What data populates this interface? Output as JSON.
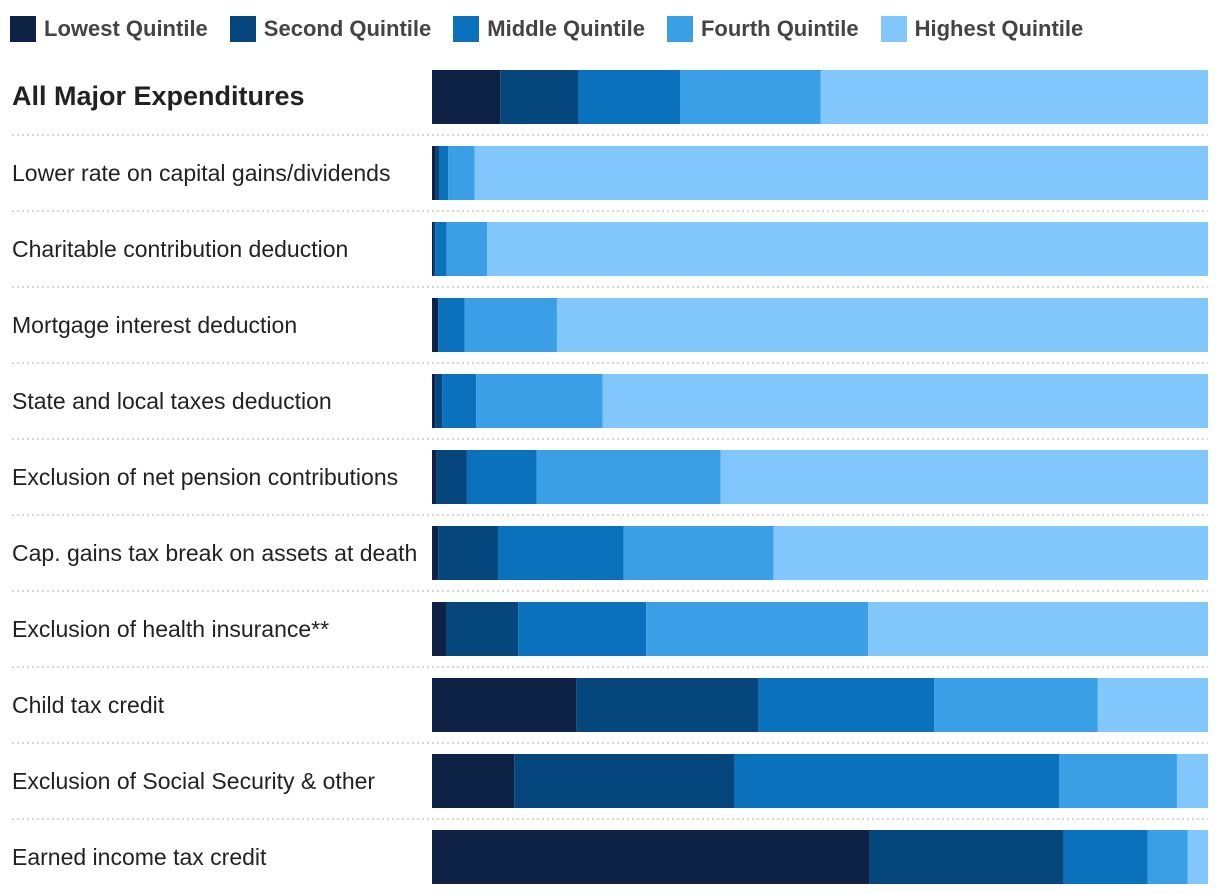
{
  "chart_data": {
    "type": "bar",
    "orientation": "horizontal",
    "stacked": true,
    "normalized_percent": true,
    "legend_position": "top",
    "categories": [
      "All Major Expenditures",
      "Lower rate on capital gains/dividends",
      "Charitable contribution deduction",
      "Mortgage interest deduction",
      "State and local taxes deduction",
      "Exclusion of net pension contributions",
      "Cap. gains tax break on assets at death",
      "Exclusion of health insurance**",
      "Child tax credit",
      "Exclusion of Social Security & other",
      "Earned income tax credit"
    ],
    "series": [
      {
        "name": "Lowest Quintile",
        "color": "#0e2245",
        "values": [
          8.8,
          0.5,
          0.2,
          0.8,
          0.4,
          0.6,
          0.8,
          1.8,
          18.6,
          10.6,
          56.4
        ]
      },
      {
        "name": "Second Quintile",
        "color": "#05467d",
        "values": [
          10.1,
          0.5,
          0.2,
          0.0,
          0.9,
          3.9,
          7.7,
          9.3,
          23.5,
          28.4,
          25.0
        ]
      },
      {
        "name": "Middle Quintile",
        "color": "#0a72bd",
        "values": [
          13.1,
          1.1,
          1.5,
          3.4,
          4.4,
          9.0,
          16.2,
          16.5,
          22.6,
          41.8,
          10.8
        ]
      },
      {
        "name": "Fourth Quintile",
        "color": "#3a9fe4",
        "values": [
          18.1,
          3.4,
          5.2,
          11.9,
          16.3,
          23.7,
          19.3,
          28.6,
          21.1,
          15.2,
          5.2
        ]
      },
      {
        "name": "Highest Quintile",
        "color": "#82c7fb",
        "values": [
          49.9,
          94.5,
          92.9,
          83.9,
          78.0,
          62.8,
          56.0,
          43.8,
          14.2,
          4.0,
          2.6
        ]
      }
    ],
    "title": "",
    "xlabel": "",
    "ylabel": "",
    "xlim": [
      0,
      100
    ],
    "grid": false
  }
}
